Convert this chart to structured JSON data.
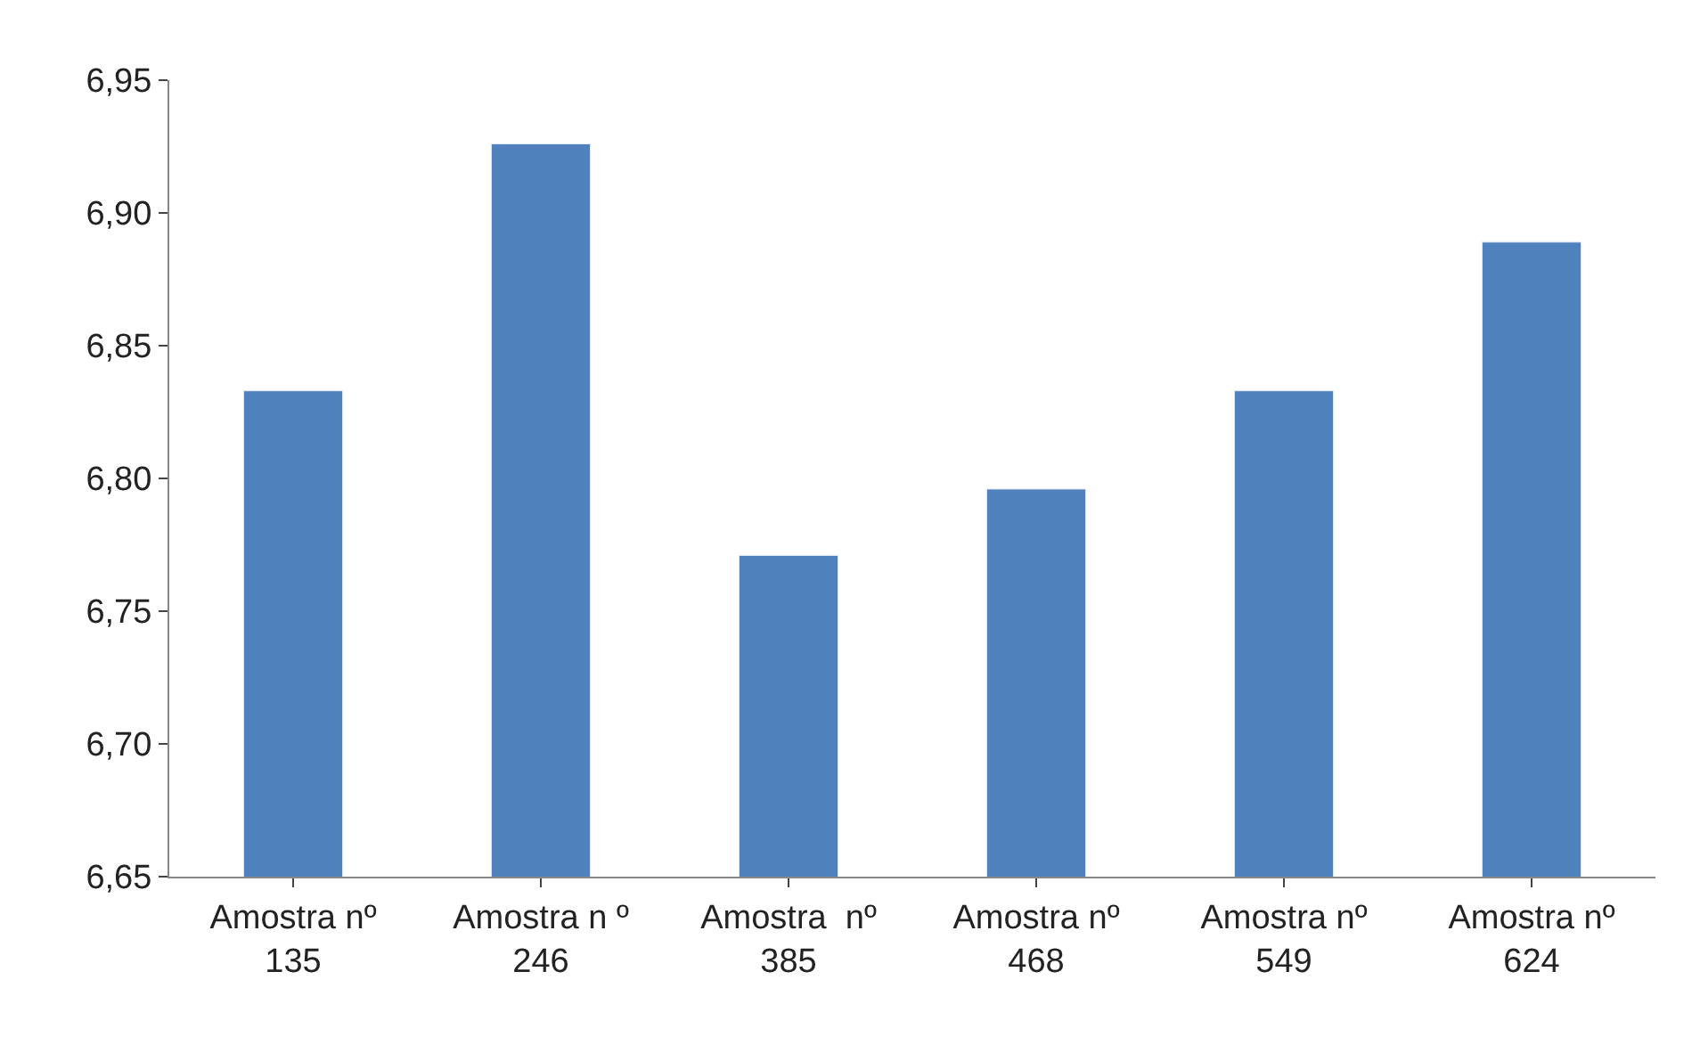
{
  "chart_data": {
    "type": "bar",
    "categories": [
      "Amostra nº\n135",
      "Amostra n º\n246",
      "Amostra  nº\n385",
      "Amostra nº\n468",
      "Amostra nº\n549",
      "Amostra nº\n624"
    ],
    "values": [
      6.833,
      6.926,
      6.771,
      6.796,
      6.833,
      6.889
    ],
    "color": "#4f81bd",
    "ylim": [
      6.65,
      6.95
    ],
    "yticks": [
      {
        "value": 6.65,
        "label": "6,65"
      },
      {
        "value": 6.7,
        "label": "6,70"
      },
      {
        "value": 6.75,
        "label": "6,75"
      },
      {
        "value": 6.8,
        "label": "6,80"
      },
      {
        "value": 6.85,
        "label": "6,85"
      },
      {
        "value": 6.9,
        "label": "6,90"
      },
      {
        "value": 6.95,
        "label": "6,95"
      }
    ]
  }
}
